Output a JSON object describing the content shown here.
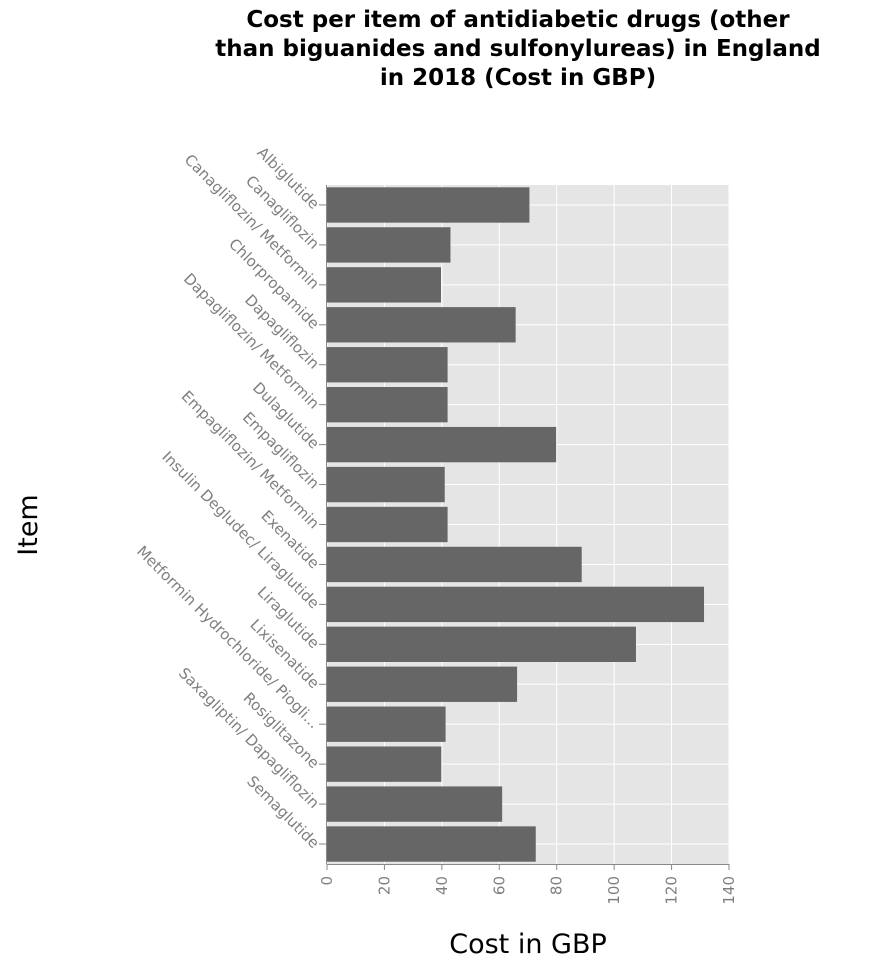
{
  "chart_data": {
    "type": "bar",
    "orientation": "horizontal",
    "title_lines": [
      "Cost per item of antidiabetic drugs (other",
      "than biguanides and sulfonylureas) in England",
      "in 2018 (Cost in GBP)"
    ],
    "xlabel": "Cost in GBP",
    "ylabel": "Item",
    "xlim": [
      0,
      140
    ],
    "xticks": [
      0,
      20,
      40,
      60,
      80,
      100,
      120,
      140
    ],
    "grid": true,
    "categories": [
      "Albiglutide",
      "Canagliflozin",
      "Canagliflozin/ Metformin",
      "Chlorpropamide",
      "Dapagliflozin",
      "Dapagliflozin/ Metformin",
      "Dulaglutide",
      "Empagliflozin",
      "Empagliflozin/ Metformin",
      "Exenatide",
      "Insulin Degludec/ Liraglutide",
      "Liraglutide",
      "Lixisenatide",
      "Metformin Hydrochloride/ Piogli...",
      "Rosiglitazone",
      "Saxagliptin/ Dapagliflozin",
      "Semaglutide"
    ],
    "values": [
      70.5,
      43,
      39.7,
      65.7,
      42,
      42,
      79.8,
      41,
      42,
      88.7,
      131.3,
      107.6,
      66.2,
      41.3,
      39.8,
      61,
      72.7
    ],
    "bar_color": "#666666",
    "plot_background": "#e5e5e5",
    "grid_color": "#ffffff"
  }
}
